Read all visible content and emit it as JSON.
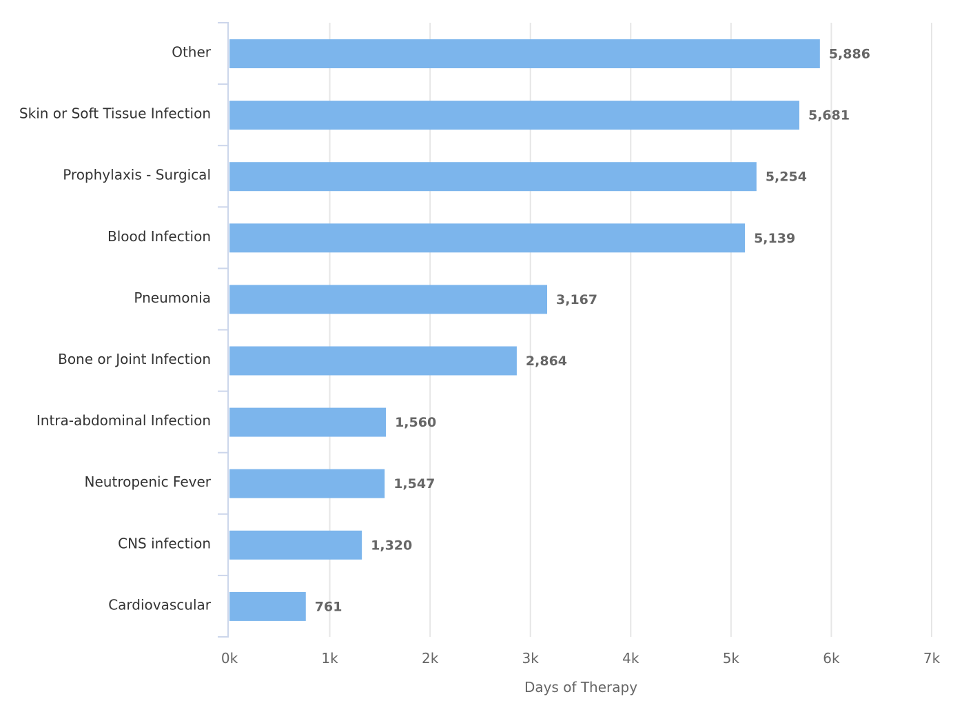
{
  "chart_data": {
    "type": "bar",
    "orientation": "horizontal",
    "categories": [
      "Other",
      "Skin or Soft Tissue Infection",
      "Prophylaxis - Surgical",
      "Blood Infection",
      "Pneumonia",
      "Bone or Joint Infection",
      "Intra-abdominal Infection",
      "Neutropenic Fever",
      "CNS infection",
      "Cardiovascular"
    ],
    "values": [
      5886,
      5681,
      5254,
      5139,
      3167,
      2864,
      1560,
      1547,
      1320,
      761
    ],
    "data_labels": [
      "5,886",
      "5,681",
      "5,254",
      "5,139",
      "3,167",
      "2,864",
      "1,560",
      "1,547",
      "1,320",
      "761"
    ],
    "title": "",
    "xlabel": "Days of Therapy",
    "ylabel": "",
    "xlim": [
      0,
      7000
    ],
    "x_ticks": [
      0,
      1000,
      2000,
      3000,
      4000,
      5000,
      6000,
      7000
    ],
    "x_tick_labels": [
      "0k",
      "1k",
      "2k",
      "3k",
      "4k",
      "5k",
      "6k",
      "7k"
    ],
    "grid": true,
    "legend": "none",
    "colors": {
      "bar": "#7cb5ec",
      "grid": "#e6e6e6",
      "axis": "#ccd6eb",
      "text": "#666666",
      "label": "#333333"
    }
  }
}
